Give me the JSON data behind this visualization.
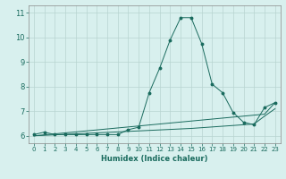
{
  "x": [
    0,
    1,
    2,
    3,
    4,
    5,
    6,
    7,
    8,
    9,
    10,
    11,
    12,
    13,
    14,
    15,
    16,
    17,
    18,
    19,
    20,
    21,
    22,
    23
  ],
  "y_humidex": [
    6.05,
    6.15,
    6.05,
    6.05,
    6.05,
    6.05,
    6.05,
    6.05,
    6.05,
    6.25,
    6.35,
    7.75,
    8.75,
    9.9,
    10.8,
    10.8,
    9.75,
    8.1,
    7.75,
    6.95,
    6.55,
    6.45,
    7.15,
    7.35
  ],
  "y_linear1": [
    6.0,
    6.04,
    6.08,
    6.12,
    6.16,
    6.2,
    6.24,
    6.28,
    6.32,
    6.36,
    6.4,
    6.44,
    6.48,
    6.52,
    6.56,
    6.6,
    6.64,
    6.68,
    6.72,
    6.76,
    6.8,
    6.84,
    6.88,
    7.35
  ],
  "y_linear2": [
    6.0,
    6.02,
    6.04,
    6.06,
    6.08,
    6.1,
    6.12,
    6.14,
    6.16,
    6.18,
    6.2,
    6.22,
    6.24,
    6.26,
    6.28,
    6.3,
    6.33,
    6.36,
    6.39,
    6.42,
    6.45,
    6.48,
    6.8,
    7.1
  ],
  "line_color": "#1a6b5e",
  "bg_color": "#d8f0ee",
  "grid_color": "#b8d4d0",
  "xlabel": "Humidex (Indice chaleur)",
  "ylim": [
    5.7,
    11.3
  ],
  "xlim": [
    -0.5,
    23.5
  ],
  "yticks": [
    6,
    7,
    8,
    9,
    10,
    11
  ],
  "xticks": [
    0,
    1,
    2,
    3,
    4,
    5,
    6,
    7,
    8,
    9,
    10,
    11,
    12,
    13,
    14,
    15,
    16,
    17,
    18,
    19,
    20,
    21,
    22,
    23
  ]
}
